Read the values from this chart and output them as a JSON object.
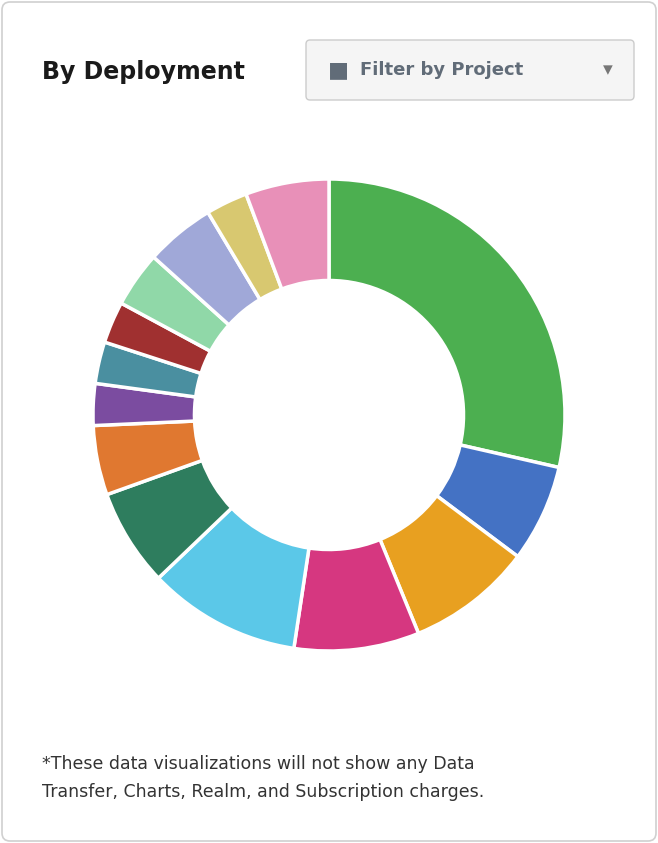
{
  "title": "By Deployment",
  "filter_label": "Filter by Project",
  "footnote": "*These data visualizations will not show any Data\nTransfer, Charts, Realm, and Subscription charges.",
  "segments": [
    {
      "color": "#4CAF50",
      "value": 30
    },
    {
      "color": "#4472C4",
      "value": 7
    },
    {
      "color": "#E8A020",
      "value": 9
    },
    {
      "color": "#D63780",
      "value": 9
    },
    {
      "color": "#5BC8E8",
      "value": 11
    },
    {
      "color": "#2E7D5E",
      "value": 7
    },
    {
      "color": "#E07830",
      "value": 5
    },
    {
      "color": "#7B4CA0",
      "value": 3
    },
    {
      "color": "#4A8FA0",
      "value": 3
    },
    {
      "color": "#A03030",
      "value": 3
    },
    {
      "color": "#90D8A8",
      "value": 4
    },
    {
      "color": "#A0A8D8",
      "value": 5
    },
    {
      "color": "#D8C870",
      "value": 3
    },
    {
      "color": "#E890B8",
      "value": 6
    }
  ],
  "background_color": "#ffffff",
  "title_fontsize": 17,
  "footnote_fontsize": 12.5,
  "start_angle": 90
}
